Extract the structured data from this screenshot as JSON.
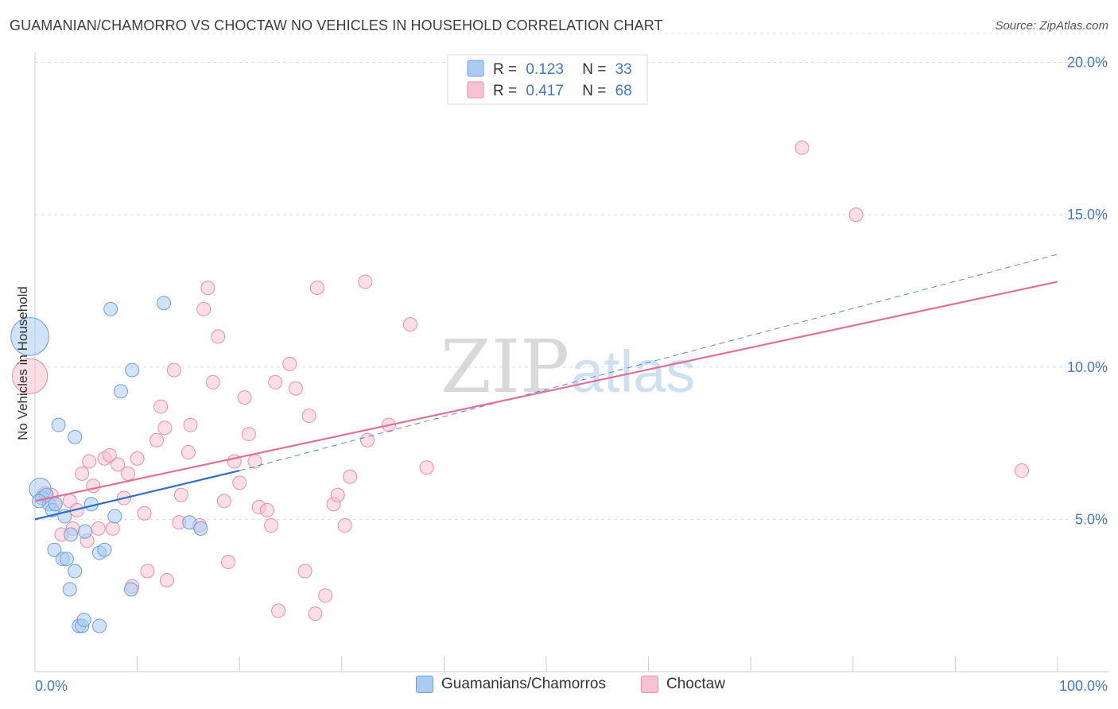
{
  "title": "GUAMANIAN/CHAMORRO VS CHOCTAW NO VEHICLES IN HOUSEHOLD CORRELATION CHART",
  "source": "Source: ZipAtlas.com",
  "colors": {
    "blue_fill": "#aaccf4",
    "blue_stroke": "#6f9fd8",
    "blue_line": "#2f6fc9",
    "pink_fill": "#f8c2d2",
    "pink_stroke": "#e690ab",
    "pink_line": "#e0709a",
    "axis_text": "#3f78c6",
    "grid": "#dddddd"
  },
  "chart_data": {
    "type": "scatter",
    "xlabel": "",
    "ylabel": "No Vehicles in Household",
    "xlim": [
      0,
      100
    ],
    "ylim": [
      0,
      20
    ],
    "x_tick_labels": [
      "0.0%",
      "100.0%"
    ],
    "y_ticks": [
      5,
      10,
      15,
      20
    ],
    "y_tick_labels": [
      "5.0%",
      "10.0%",
      "15.0%",
      "20.0%"
    ],
    "watermark": {
      "zip": "ZIP",
      "atlas": "atlas"
    },
    "legend": [
      {
        "r_label": "R =",
        "r_value": "0.123",
        "n_label": "N =",
        "n_value": "33"
      },
      {
        "r_label": "R =",
        "r_value": "0.417",
        "n_label": "N =",
        "n_value": "68"
      }
    ],
    "series": [
      {
        "name": "Guamanians/Chamorros",
        "trend": {
          "solid": [
            [
              0,
              5.0
            ],
            [
              20,
              6.6
            ]
          ],
          "dashed": [
            [
              20,
              6.6
            ],
            [
              100,
              13.7
            ]
          ]
        },
        "points": [
          {
            "x": -0.5,
            "y": 11.0,
            "s": 28
          },
          {
            "x": 0.5,
            "y": 6.0,
            "s": 16
          },
          {
            "x": 0.7,
            "y": 5.7,
            "s": 10
          },
          {
            "x": 1.1,
            "y": 5.8,
            "s": 10
          },
          {
            "x": 1.4,
            "y": 5.5,
            "s": 10
          },
          {
            "x": 1.7,
            "y": 5.3,
            "s": 10
          },
          {
            "x": 2.0,
            "y": 5.5,
            "s": 10
          },
          {
            "x": 1.9,
            "y": 4.0,
            "s": 10
          },
          {
            "x": 2.3,
            "y": 8.1,
            "s": 10
          },
          {
            "x": 2.7,
            "y": 3.7,
            "s": 10
          },
          {
            "x": 2.9,
            "y": 5.1,
            "s": 10
          },
          {
            "x": 3.1,
            "y": 3.7,
            "s": 10
          },
          {
            "x": 3.4,
            "y": 2.7,
            "s": 10
          },
          {
            "x": 3.5,
            "y": 4.5,
            "s": 10
          },
          {
            "x": 3.9,
            "y": 3.3,
            "s": 10
          },
          {
            "x": 3.9,
            "y": 7.7,
            "s": 10
          },
          {
            "x": 4.3,
            "y": 1.5,
            "s": 10
          },
          {
            "x": 4.6,
            "y": 1.5,
            "s": 10
          },
          {
            "x": 4.8,
            "y": 1.7,
            "s": 10
          },
          {
            "x": 4.9,
            "y": 4.6,
            "s": 10
          },
          {
            "x": 5.5,
            "y": 5.5,
            "s": 10
          },
          {
            "x": 6.3,
            "y": 1.5,
            "s": 10
          },
          {
            "x": 6.3,
            "y": 3.9,
            "s": 10
          },
          {
            "x": 6.8,
            "y": 4.0,
            "s": 10
          },
          {
            "x": 7.4,
            "y": 11.9,
            "s": 10
          },
          {
            "x": 7.8,
            "y": 5.1,
            "s": 10
          },
          {
            "x": 8.4,
            "y": 9.2,
            "s": 10
          },
          {
            "x": 9.4,
            "y": 2.7,
            "s": 10
          },
          {
            "x": 9.5,
            "y": 9.9,
            "s": 10
          },
          {
            "x": 12.6,
            "y": 12.1,
            "s": 10
          },
          {
            "x": 15.1,
            "y": 4.9,
            "s": 10
          },
          {
            "x": 16.2,
            "y": 4.7,
            "s": 10
          },
          {
            "x": 0.4,
            "y": 5.6,
            "s": 10
          }
        ]
      },
      {
        "name": "Choctaw",
        "trend": {
          "solid": [
            [
              0,
              5.6
            ],
            [
              100,
              12.8
            ]
          ]
        },
        "points": [
          {
            "x": -0.5,
            "y": 9.7,
            "s": 26
          },
          {
            "x": 1.0,
            "y": 5.8,
            "s": 12
          },
          {
            "x": 1.6,
            "y": 5.8,
            "s": 10
          },
          {
            "x": 2.0,
            "y": 5.5,
            "s": 10
          },
          {
            "x": 2.6,
            "y": 4.5,
            "s": 10
          },
          {
            "x": 3.4,
            "y": 5.6,
            "s": 10
          },
          {
            "x": 3.7,
            "y": 4.7,
            "s": 10
          },
          {
            "x": 4.1,
            "y": 5.3,
            "s": 10
          },
          {
            "x": 4.6,
            "y": 6.5,
            "s": 10
          },
          {
            "x": 5.1,
            "y": 4.3,
            "s": 10
          },
          {
            "x": 5.7,
            "y": 6.1,
            "s": 10
          },
          {
            "x": 6.2,
            "y": 4.7,
            "s": 10
          },
          {
            "x": 6.8,
            "y": 7.0,
            "s": 10
          },
          {
            "x": 7.3,
            "y": 7.1,
            "s": 10
          },
          {
            "x": 7.6,
            "y": 4.7,
            "s": 10
          },
          {
            "x": 8.1,
            "y": 6.8,
            "s": 10
          },
          {
            "x": 8.7,
            "y": 5.7,
            "s": 10
          },
          {
            "x": 9.1,
            "y": 6.5,
            "s": 10
          },
          {
            "x": 9.5,
            "y": 2.8,
            "s": 10
          },
          {
            "x": 10.0,
            "y": 7.0,
            "s": 10
          },
          {
            "x": 10.7,
            "y": 5.2,
            "s": 10
          },
          {
            "x": 11.0,
            "y": 3.3,
            "s": 10
          },
          {
            "x": 11.9,
            "y": 7.6,
            "s": 10
          },
          {
            "x": 12.3,
            "y": 8.7,
            "s": 10
          },
          {
            "x": 12.7,
            "y": 8.0,
            "s": 10
          },
          {
            "x": 12.9,
            "y": 3.0,
            "s": 10
          },
          {
            "x": 13.6,
            "y": 9.9,
            "s": 10
          },
          {
            "x": 14.1,
            "y": 4.9,
            "s": 10
          },
          {
            "x": 14.3,
            "y": 5.8,
            "s": 10
          },
          {
            "x": 15.0,
            "y": 7.2,
            "s": 10
          },
          {
            "x": 15.2,
            "y": 8.1,
            "s": 10
          },
          {
            "x": 16.1,
            "y": 4.8,
            "s": 10
          },
          {
            "x": 16.5,
            "y": 11.9,
            "s": 10
          },
          {
            "x": 16.9,
            "y": 12.6,
            "s": 10
          },
          {
            "x": 17.4,
            "y": 9.5,
            "s": 10
          },
          {
            "x": 17.9,
            "y": 11.0,
            "s": 10
          },
          {
            "x": 18.5,
            "y": 5.6,
            "s": 10
          },
          {
            "x": 18.9,
            "y": 3.6,
            "s": 10
          },
          {
            "x": 19.5,
            "y": 6.9,
            "s": 10
          },
          {
            "x": 20.0,
            "y": 6.2,
            "s": 10
          },
          {
            "x": 20.5,
            "y": 9.0,
            "s": 10
          },
          {
            "x": 20.9,
            "y": 7.8,
            "s": 10
          },
          {
            "x": 21.5,
            "y": 6.9,
            "s": 10
          },
          {
            "x": 21.9,
            "y": 5.4,
            "s": 10
          },
          {
            "x": 22.7,
            "y": 5.3,
            "s": 10
          },
          {
            "x": 23.1,
            "y": 4.8,
            "s": 10
          },
          {
            "x": 23.5,
            "y": 9.5,
            "s": 10
          },
          {
            "x": 23.8,
            "y": 2.0,
            "s": 10
          },
          {
            "x": 24.9,
            "y": 10.1,
            "s": 10
          },
          {
            "x": 25.5,
            "y": 9.3,
            "s": 10
          },
          {
            "x": 26.4,
            "y": 3.3,
            "s": 10
          },
          {
            "x": 26.8,
            "y": 8.4,
            "s": 10
          },
          {
            "x": 27.4,
            "y": 1.9,
            "s": 10
          },
          {
            "x": 27.6,
            "y": 12.6,
            "s": 10
          },
          {
            "x": 28.4,
            "y": 2.5,
            "s": 10
          },
          {
            "x": 29.2,
            "y": 5.5,
            "s": 10
          },
          {
            "x": 29.6,
            "y": 5.8,
            "s": 10
          },
          {
            "x": 30.3,
            "y": 4.8,
            "s": 10
          },
          {
            "x": 30.8,
            "y": 6.4,
            "s": 10
          },
          {
            "x": 32.3,
            "y": 12.8,
            "s": 10
          },
          {
            "x": 32.5,
            "y": 7.6,
            "s": 10
          },
          {
            "x": 34.6,
            "y": 8.1,
            "s": 10
          },
          {
            "x": 36.7,
            "y": 11.4,
            "s": 10
          },
          {
            "x": 38.3,
            "y": 6.7,
            "s": 10
          },
          {
            "x": 75.0,
            "y": 17.2,
            "s": 10
          },
          {
            "x": 80.3,
            "y": 15.0,
            "s": 10
          },
          {
            "x": 96.5,
            "y": 6.6,
            "s": 10
          },
          {
            "x": 5.3,
            "y": 6.9,
            "s": 10
          }
        ]
      }
    ]
  }
}
